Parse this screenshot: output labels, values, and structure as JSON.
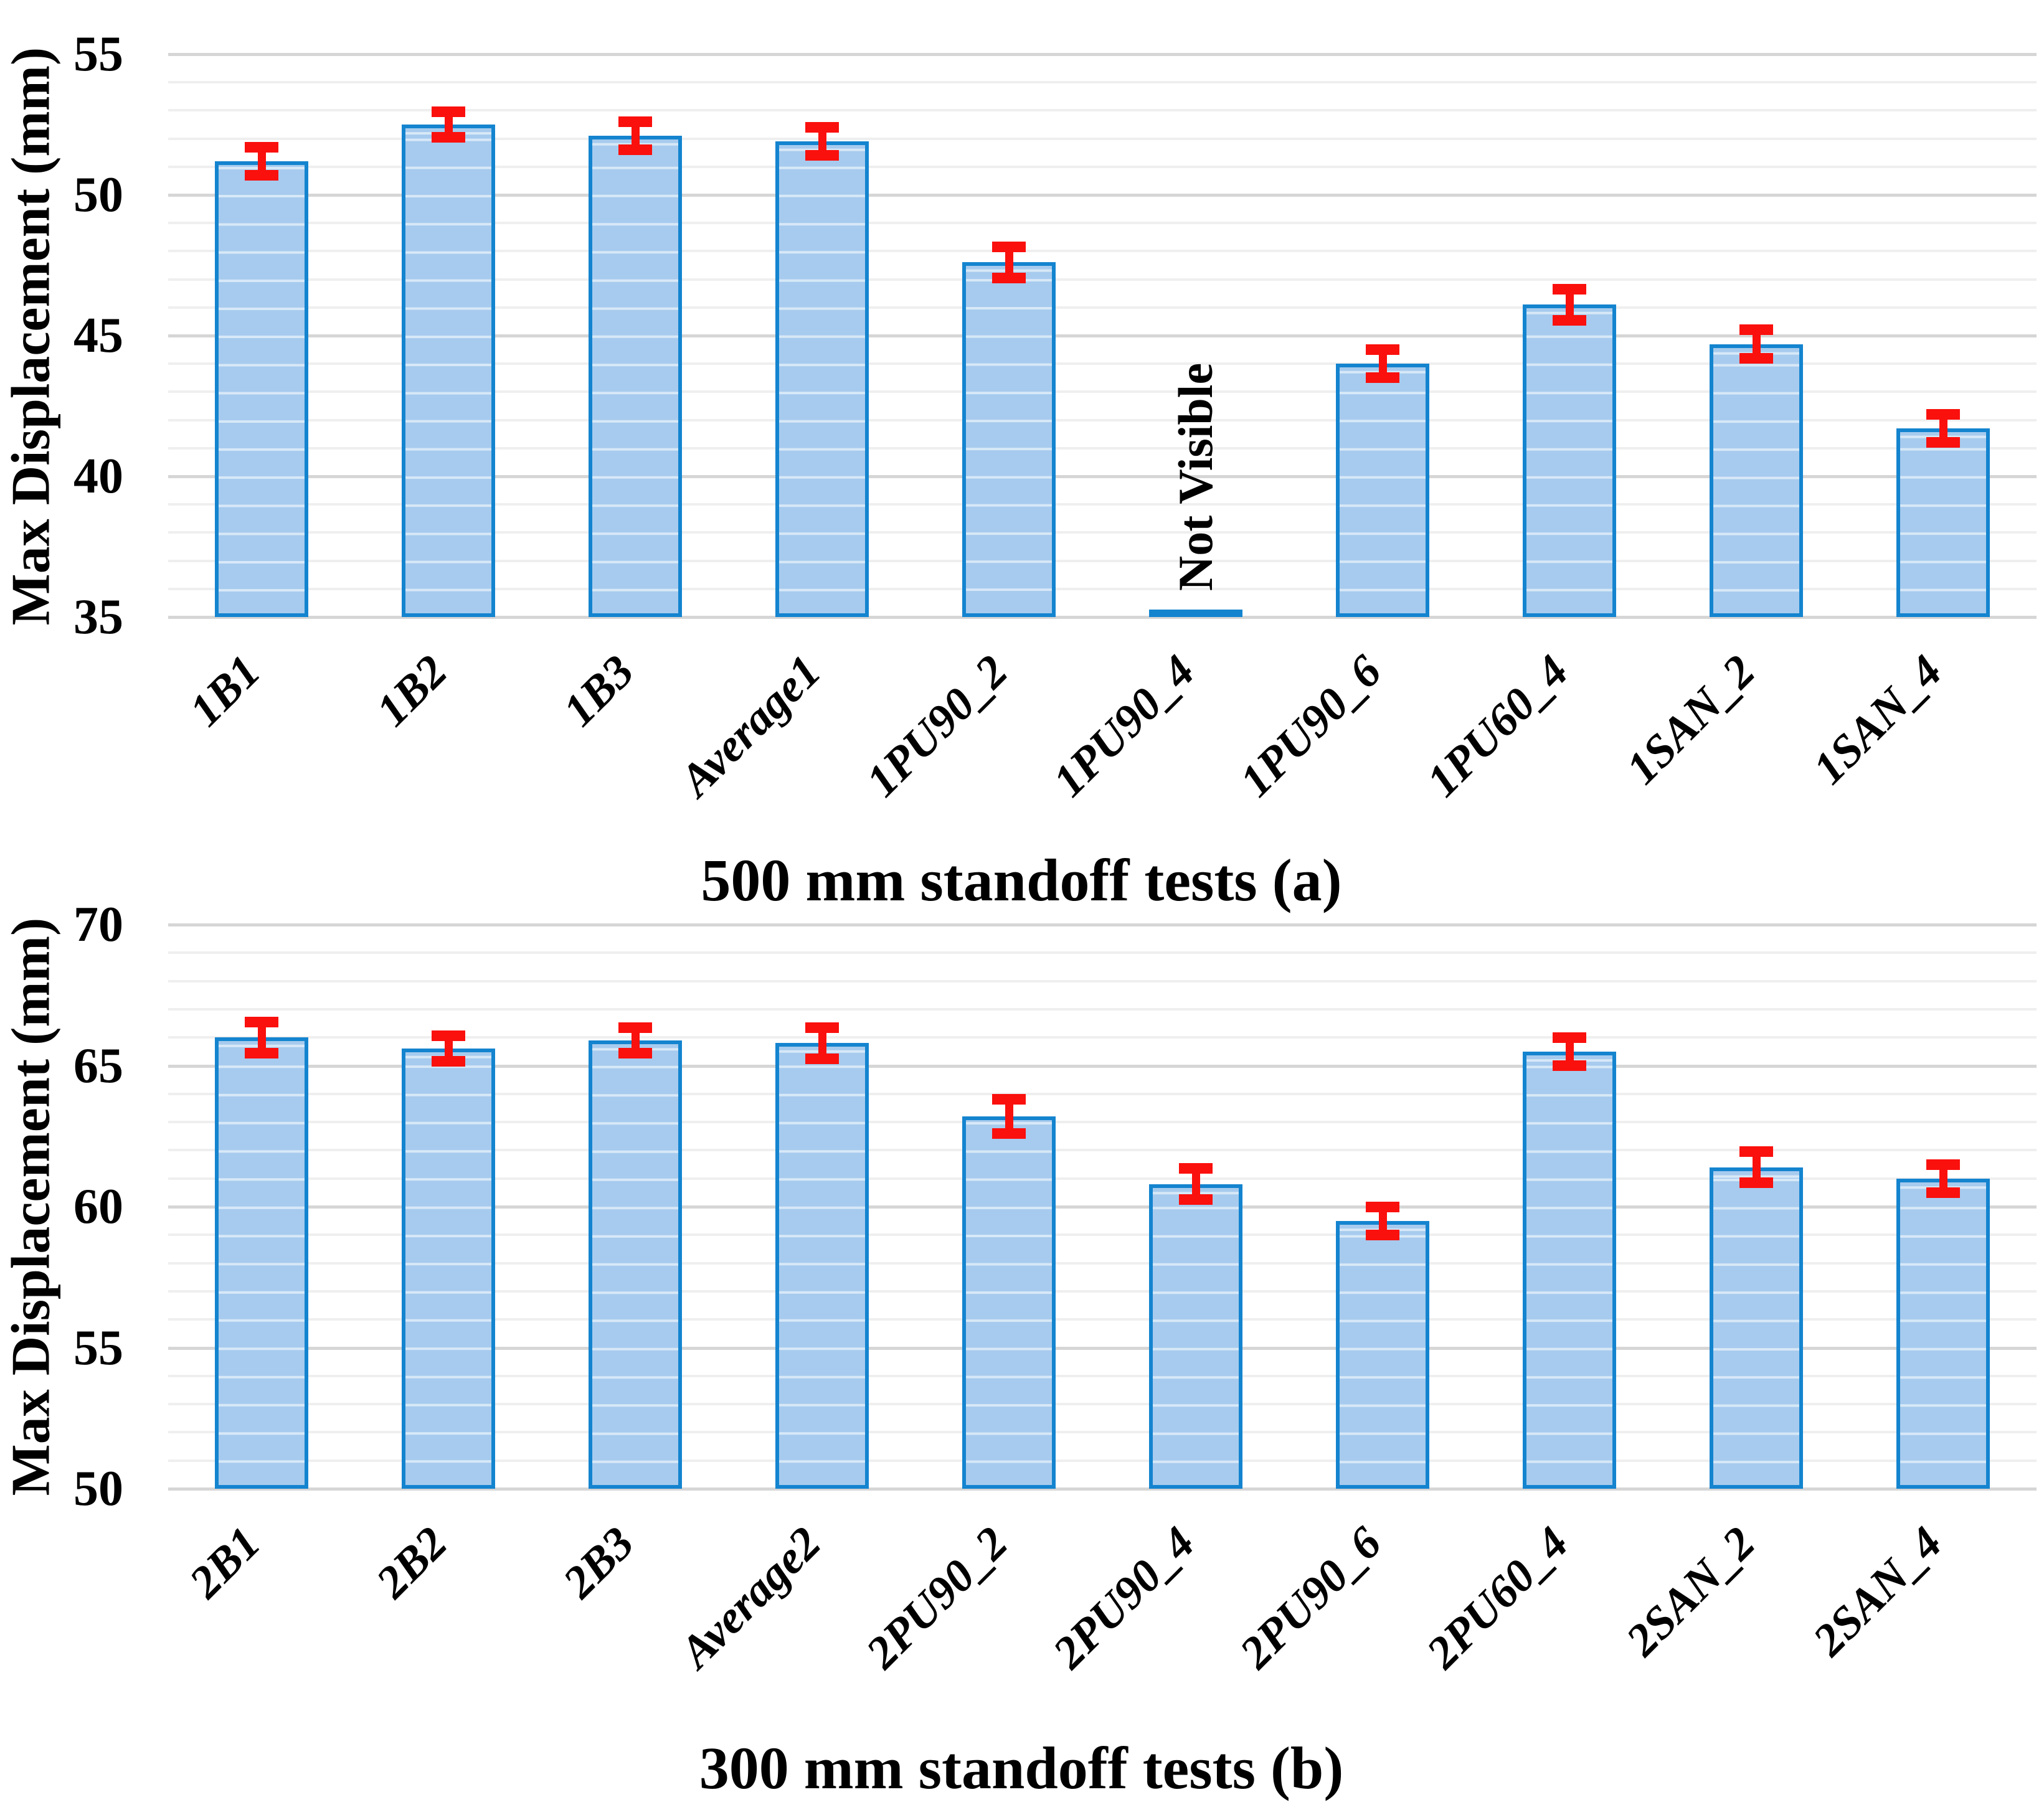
{
  "figure": {
    "background": "#ffffff"
  },
  "chart_data": [
    {
      "type": "bar",
      "panel": "a",
      "title": "500 mm standoff tests (a)",
      "ylabel": "Max Displacement (mm)",
      "xlabel": "",
      "ylim": [
        35,
        55
      ],
      "yticks": [
        55,
        50,
        45,
        40,
        35
      ],
      "ytick_step": 5,
      "minor_grid_step": 1,
      "grid": "horizontal",
      "legend": "none",
      "error_bars": true,
      "categories": [
        "1B1",
        "1B2",
        "1B3",
        "Average1",
        "1PU90_2",
        "1PU90_4",
        "1PU90_6",
        "1PU60_4",
        "1SAN_2",
        "1SAN_4"
      ],
      "values": [
        51.2,
        52.5,
        52.1,
        51.9,
        47.6,
        null,
        44.0,
        46.1,
        44.7,
        41.7
      ],
      "errors": [
        0.5,
        0.45,
        0.5,
        0.5,
        0.55,
        null,
        0.5,
        0.55,
        0.5,
        0.5
      ],
      "annotations": [
        {
          "text": "Not Visible",
          "category": "1PU90_4",
          "rotation_deg": -90
        }
      ]
    },
    {
      "type": "bar",
      "panel": "b",
      "title": "300 mm standoff tests (b)",
      "ylabel": "Max Displacement (mm)",
      "xlabel": "",
      "ylim": [
        50,
        70
      ],
      "yticks": [
        70,
        65,
        60,
        55,
        50
      ],
      "ytick_step": 5,
      "minor_grid_step": 1,
      "grid": "horizontal",
      "legend": "none",
      "error_bars": true,
      "categories": [
        "2B1",
        "2B2",
        "2B3",
        "Average2",
        "2PU90_2",
        "2PU90_4",
        "2PU90_6",
        "2PU60_4",
        "2SAN_2",
        "2SAN_4"
      ],
      "values": [
        66.0,
        65.6,
        65.9,
        65.8,
        63.2,
        60.8,
        59.5,
        65.5,
        61.4,
        61.0
      ],
      "errors": [
        0.55,
        0.45,
        0.45,
        0.55,
        0.6,
        0.55,
        0.5,
        0.5,
        0.55,
        0.5
      ],
      "annotations": []
    }
  ],
  "colors": {
    "bar_fill": "#a7cbee",
    "bar_band": "rgba(255,255,255,0.55)",
    "bar_border": "#1484cf",
    "error_bar": "#fa100d",
    "grid_minor": "#efefef",
    "grid_major": "#d6d6d6",
    "text": "#000000"
  }
}
